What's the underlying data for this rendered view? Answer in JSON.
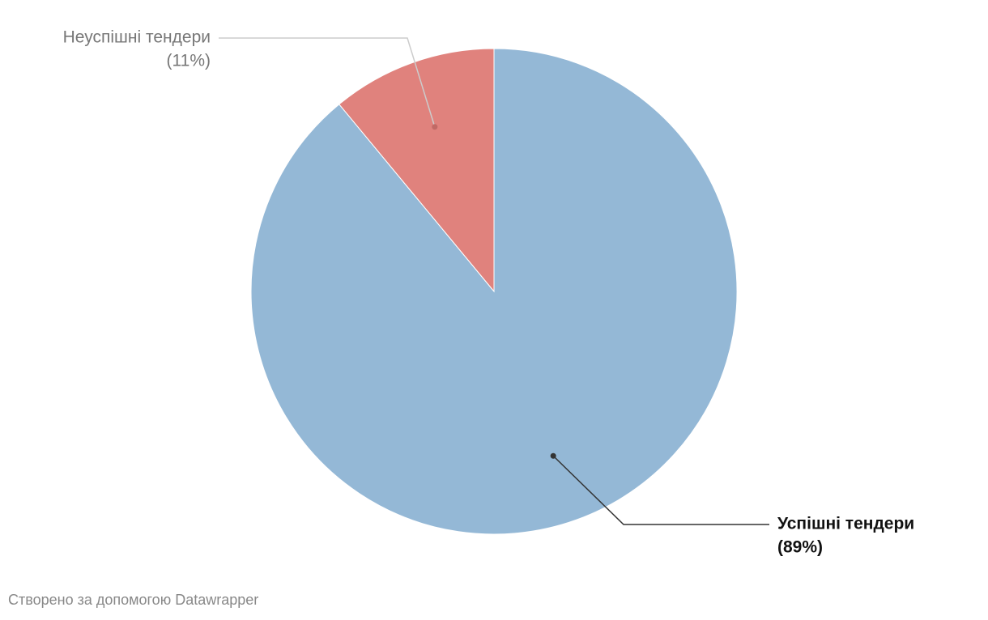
{
  "chart_data": {
    "type": "pie",
    "categories": [
      "Успішні тендери",
      "Неуспішні тендери"
    ],
    "values": [
      89,
      11
    ],
    "value_labels": [
      "(89%)",
      "(11%)"
    ],
    "colors": [
      "#94b8d6",
      "#e0827d"
    ],
    "credit": "Створено за допомогою Datawrapper"
  }
}
